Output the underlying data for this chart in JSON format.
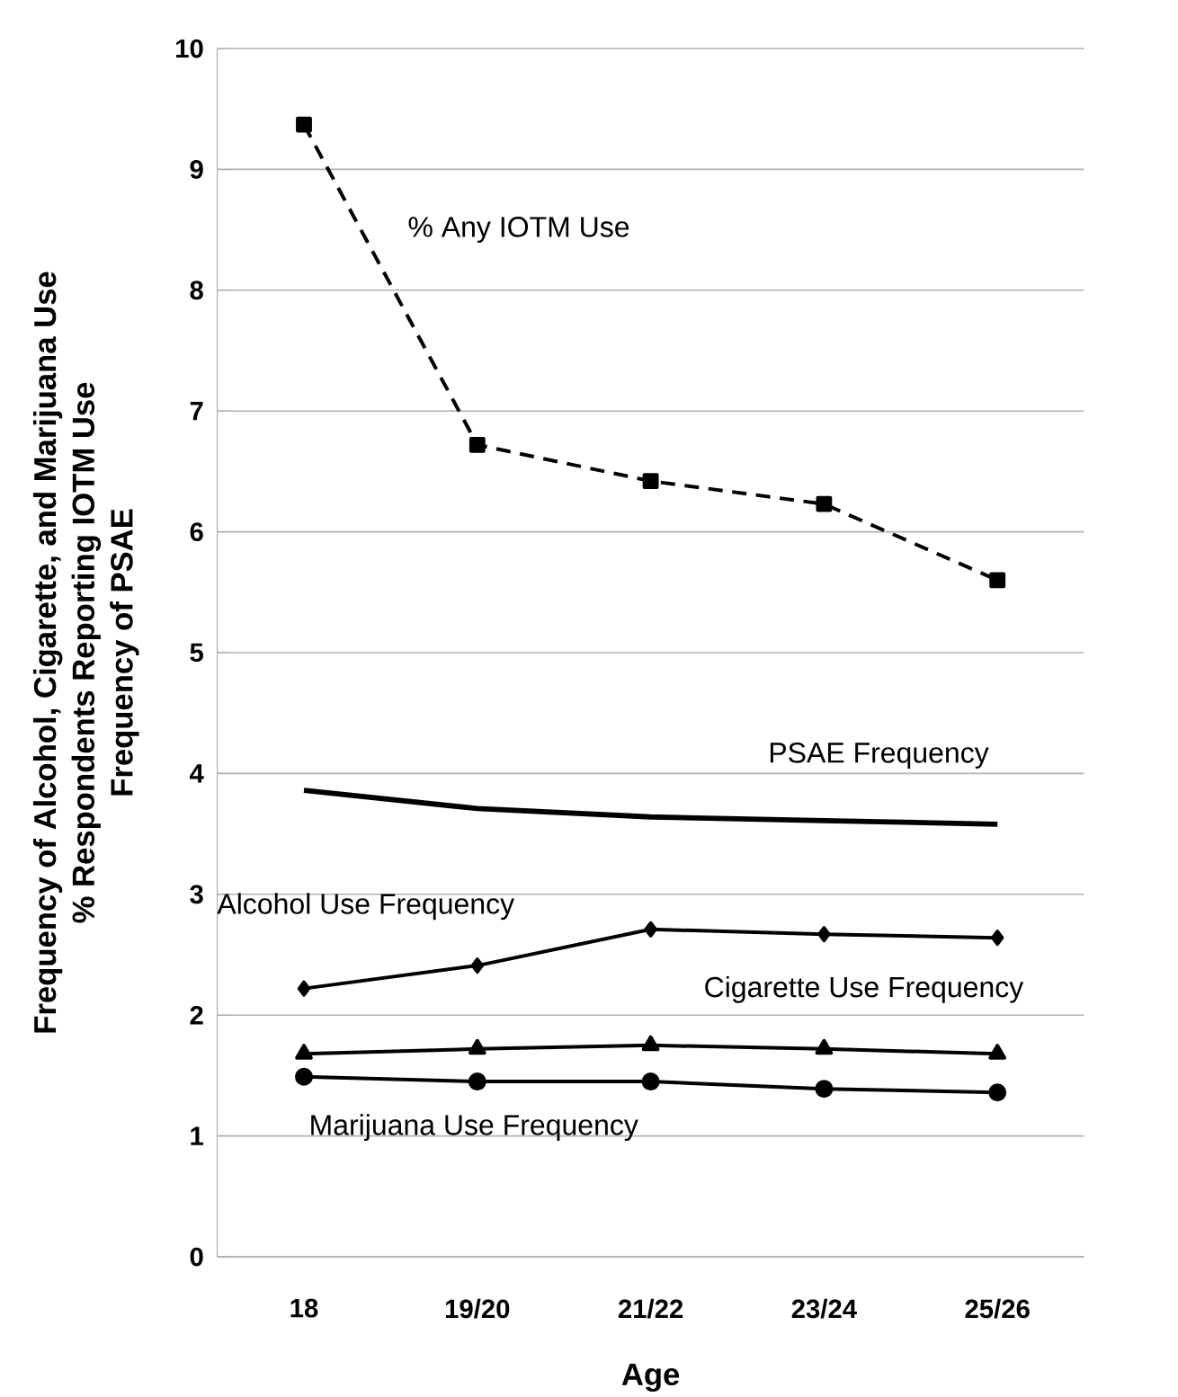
{
  "chart_data": {
    "type": "line",
    "xlabel": "Age",
    "ylabel": "Frequency of Alcohol, Cigarette, and Marijuana Use\n% Respondents Reporting IOTM Use\nFrequency of PSAE",
    "categories": [
      "18",
      "19/20",
      "21/22",
      "23/24",
      "25/26"
    ],
    "series": [
      {
        "name": "% Any IOTM Use",
        "color": "#000000",
        "marker": "square",
        "line_style": "dashed",
        "values": [
          9.37,
          6.72,
          6.42,
          6.23,
          5.6
        ]
      },
      {
        "name": "PSAE Frequency",
        "color": "#000000",
        "marker": "none",
        "line_style": "solid",
        "values": [
          3.86,
          3.71,
          3.64,
          3.61,
          3.58
        ]
      },
      {
        "name": "Alcohol Use Frequency",
        "color": "#000000",
        "marker": "diamond",
        "line_style": "solid",
        "values": [
          2.22,
          2.41,
          2.71,
          2.67,
          2.64
        ]
      },
      {
        "name": "Cigarette Use Frequency",
        "color": "#000000",
        "marker": "triangle",
        "line_style": "solid",
        "values": [
          1.68,
          1.72,
          1.75,
          1.72,
          1.68
        ]
      },
      {
        "name": "Marijuana Use Frequency",
        "color": "#000000",
        "marker": "circle",
        "line_style": "solid",
        "values": [
          1.49,
          1.45,
          1.45,
          1.39,
          1.36
        ]
      }
    ],
    "ylim": [
      0,
      10
    ],
    "yticks": [
      0,
      1,
      2,
      3,
      4,
      5,
      6,
      7,
      8,
      9,
      10
    ],
    "grid": "y",
    "legend": false
  }
}
